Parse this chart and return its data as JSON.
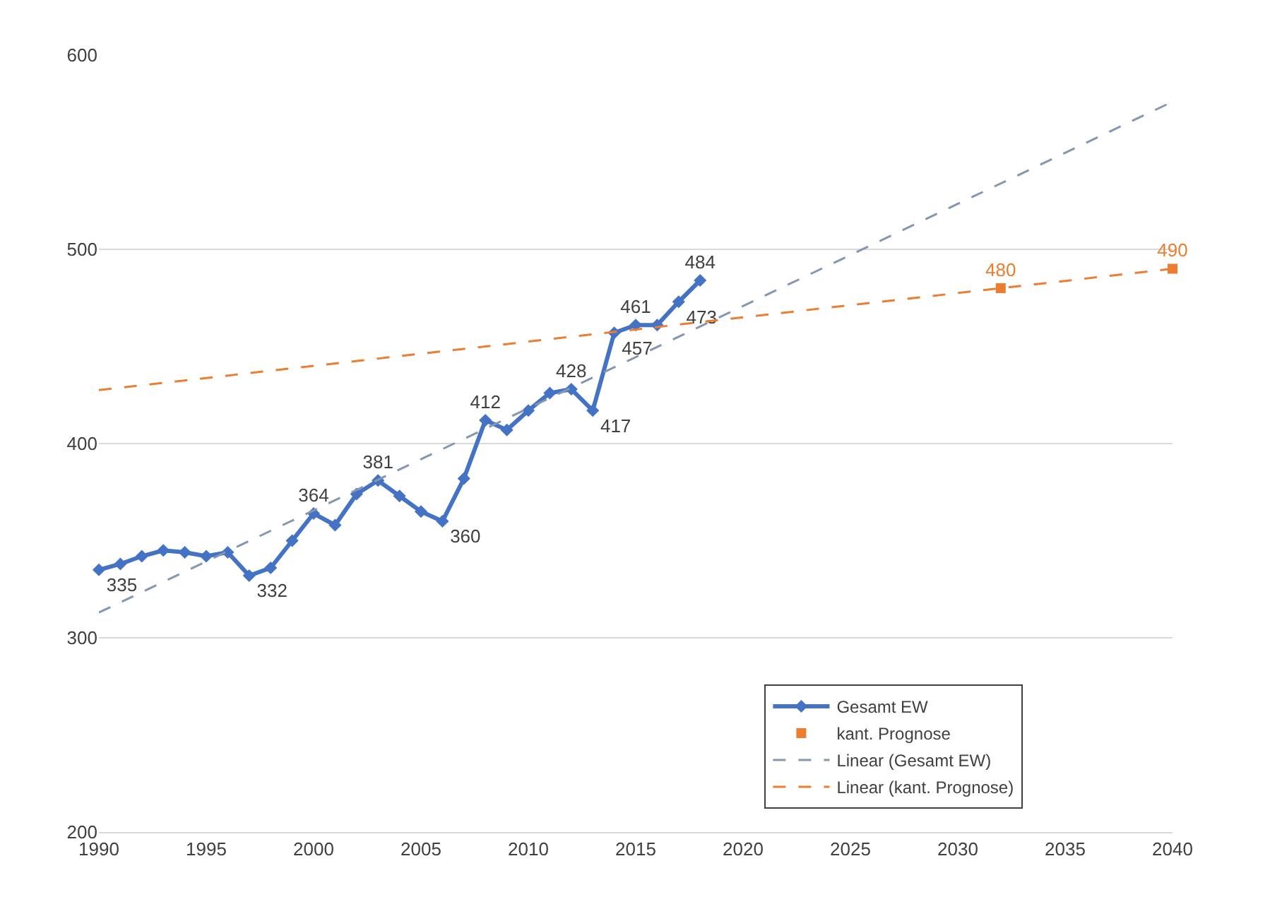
{
  "chart_data": {
    "type": "line",
    "xlim": [
      1990,
      2040
    ],
    "xticks": [
      1990,
      1995,
      2000,
      2005,
      2010,
      2015,
      2020,
      2025,
      2030,
      2035,
      2040
    ],
    "ylim": [
      200,
      600
    ],
    "yticks": [
      200,
      300,
      400,
      500,
      600
    ],
    "grid": "y",
    "legend": "bottom right",
    "series": [
      {
        "name": "Gesamt EW",
        "color": "#4472c4",
        "marker": "diamond",
        "line_style": "solid",
        "x": [
          1990,
          1991,
          1992,
          1993,
          1994,
          1995,
          1996,
          1997,
          1998,
          1999,
          2000,
          2001,
          2002,
          2003,
          2004,
          2005,
          2006,
          2007,
          2008,
          2009,
          2010,
          2011,
          2012,
          2013,
          2014,
          2015,
          2016,
          2017,
          2018
        ],
        "values": [
          335,
          338,
          342,
          345,
          344,
          342,
          344,
          332,
          336,
          350,
          364,
          358,
          374,
          381,
          373,
          365,
          360,
          382,
          412,
          407,
          417,
          426,
          428,
          417,
          457,
          461,
          461,
          473,
          484
        ],
        "value_labels": [
          "335",
          null,
          null,
          null,
          null,
          null,
          null,
          "332",
          null,
          null,
          "364",
          null,
          null,
          "381",
          null,
          null,
          "360",
          null,
          "412",
          null,
          null,
          null,
          "428",
          "417",
          "457",
          "461",
          null,
          "473",
          "484"
        ]
      },
      {
        "name": "kant. Prognose",
        "type": "scatter",
        "color": "#ed7d31",
        "marker": "square",
        "x": [
          2032,
          2040
        ],
        "values": [
          480,
          490
        ],
        "value_labels": [
          "480",
          "490"
        ]
      },
      {
        "name": "Linear (Gesamt EW)",
        "color": "#8497b0",
        "marker": "none",
        "line_style": "dashed",
        "x": [
          1990,
          2040
        ],
        "values": [
          313,
          576
        ]
      },
      {
        "name": "Linear (kant. Prognose)",
        "color": "#ed7d31",
        "marker": "none",
        "line_style": "dashed",
        "x": [
          1990,
          2040
        ],
        "values": [
          427.5,
          490
        ]
      }
    ]
  }
}
